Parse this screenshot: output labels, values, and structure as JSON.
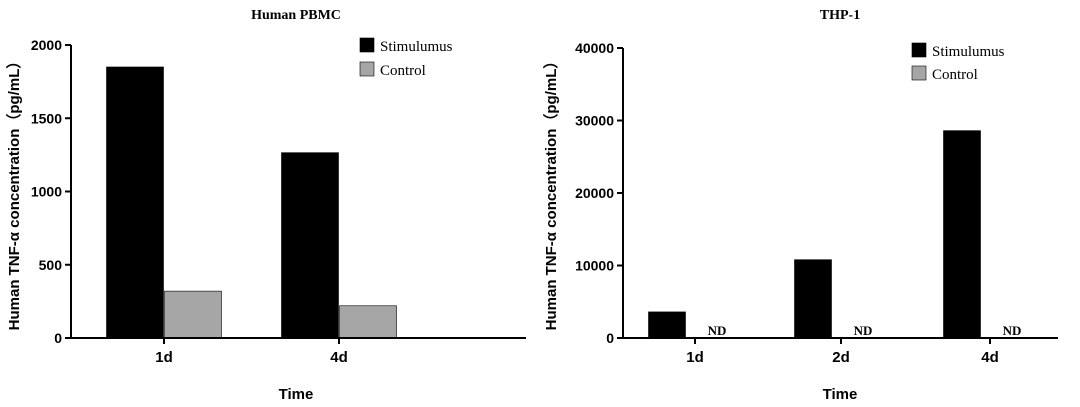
{
  "chart_data": [
    {
      "type": "bar",
      "title": "Human PBMC",
      "xlabel": "Time",
      "ylabel": "Human TNF-α concentration（pg/mL）",
      "categories": [
        "1d",
        "4d"
      ],
      "ylim": [
        0,
        2000
      ],
      "yticks": [
        0,
        500,
        1000,
        1500,
        2000
      ],
      "legend_position": "top-right",
      "series": [
        {
          "name": "Stimulumus",
          "color": "#000000",
          "values": [
            1850,
            1265
          ],
          "labels": [
            "",
            ""
          ]
        },
        {
          "name": "Control",
          "color": "#a6a6a6",
          "values": [
            320,
            220
          ],
          "labels": [
            "",
            ""
          ]
        }
      ]
    },
    {
      "type": "bar",
      "title": "THP-1",
      "xlabel": "Time",
      "ylabel": "Human TNF-α concentration（pg/mL）",
      "categories": [
        "1d",
        "2d",
        "4d"
      ],
      "ylim": [
        0,
        40000
      ],
      "yticks": [
        0,
        10000,
        20000,
        30000,
        40000
      ],
      "legend_position": "top-right",
      "series": [
        {
          "name": "Stimulumus",
          "color": "#000000",
          "values": [
            3600,
            10800,
            28600
          ],
          "labels": [
            "",
            "",
            ""
          ]
        },
        {
          "name": "Control",
          "color": "#a6a6a6",
          "values": [
            0,
            0,
            0
          ],
          "labels": [
            "ND",
            "ND",
            "ND"
          ]
        }
      ]
    }
  ]
}
